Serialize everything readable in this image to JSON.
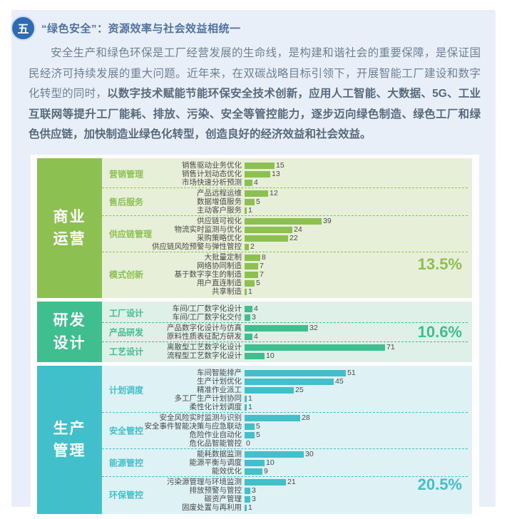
{
  "page": {
    "badge": "五",
    "title": "“绿色安全”：资源效率与社会效益相统一",
    "paragraph": {
      "normal": "安全生产和绿色环保是工厂经营发展的生命线，是构建和谐社会的重要保障，是保证国民经济可持续发展的重大问题。近年来，在双碳战略目标引领下，开展智能工厂建设和数字化转型的同时，",
      "bold": "以数字技术赋能节能环保安全技术创新，应用人工智能、大数据、5G、工业互联网等提升工厂能耗、排放、污染、安全等管控能力，逐步迈向绿色制造、绿色工厂和绿色供应链，加快制造业绿色化转型，创造良好的经济效益和社会效益。"
    }
  },
  "chart_data": {
    "type": "bar",
    "orientation": "horizontal",
    "value_max": 71,
    "legend_position": "none",
    "grid": false,
    "sections": [
      {
        "name": "商业运营",
        "label_lines": [
          "商业",
          "运营"
        ],
        "percent": "13.5%",
        "color": "#8cc152",
        "bg": "#e7efd9",
        "groups": [
          {
            "name": "营销管理",
            "items": [
              {
                "label": "销售驱动业务优化",
                "value": 15
              },
              {
                "label": "销售计划动态优化",
                "value": 13
              },
              {
                "label": "市场快速分析预测",
                "value": 4
              }
            ]
          },
          {
            "name": "售后服务",
            "items": [
              {
                "label": "产品远程运维",
                "value": 12
              },
              {
                "label": "数据增值服务",
                "value": 5
              },
              {
                "label": "主动客户服务",
                "value": 1
              }
            ]
          },
          {
            "name": "供应链管理",
            "items": [
              {
                "label": "供应链可视化",
                "value": 39
              },
              {
                "label": "物流实时监测与优化",
                "value": 24
              },
              {
                "label": "采购策略优化",
                "value": 22
              },
              {
                "label": "供应链风险预警与弹性管控",
                "value": 2
              }
            ]
          },
          {
            "name": "模式创新",
            "items": [
              {
                "label": "大批量定制",
                "value": 8
              },
              {
                "label": "网络协同制造",
                "value": 7
              },
              {
                "label": "基于数字孪生的制造",
                "value": 7
              },
              {
                "label": "用户直连制造",
                "value": 5
              },
              {
                "label": "共享制造",
                "value": 1
              }
            ]
          }
        ]
      },
      {
        "name": "研发设计",
        "label_lines": [
          "研发",
          "设计"
        ],
        "percent": "10.6%",
        "color": "#3fbe8f",
        "bg": "#dff0e9",
        "groups": [
          {
            "name": "工厂设计",
            "items": [
              {
                "label": "车间/工厂数字化设计",
                "value": 4
              },
              {
                "label": "车间/工厂数字化交付",
                "value": 3
              }
            ]
          },
          {
            "name": "产品研发",
            "items": [
              {
                "label": "产品数字化设计与仿真",
                "value": 32
              },
              {
                "label": "原料性质表征配方研发",
                "value": 4
              }
            ]
          },
          {
            "name": "工艺设计",
            "items": [
              {
                "label": "离散型工艺数字化设计",
                "value": 71
              },
              {
                "label": "流程型工艺数字化设计",
                "value": 10
              }
            ]
          }
        ]
      },
      {
        "name": "生产管理",
        "label_lines": [
          "生产",
          "管理"
        ],
        "percent": "20.5%",
        "color": "#41c0cb",
        "bg": "#def1f4",
        "groups": [
          {
            "name": "计划调度",
            "items": [
              {
                "label": "车间智能排产",
                "value": 51
              },
              {
                "label": "生产计划优化",
                "value": 45
              },
              {
                "label": "精准作业派工",
                "value": 25
              },
              {
                "label": "多工厂生产计划协同",
                "value": 1
              },
              {
                "label": "柔性化计划调度",
                "value": 1
              }
            ]
          },
          {
            "name": "安全管控",
            "items": [
              {
                "label": "安全风险实时监测与识别",
                "value": 28
              },
              {
                "label": "安全事件智能决策与应急联动",
                "value": 5
              },
              {
                "label": "危险作业自动化",
                "value": 5
              },
              {
                "label": "危化品智能管控",
                "value": 0
              }
            ]
          },
          {
            "name": "能源管控",
            "items": [
              {
                "label": "能耗数据监测",
                "value": 30
              },
              {
                "label": "能源平衡与调度",
                "value": 10
              },
              {
                "label": "能效优化",
                "value": 9
              }
            ]
          },
          {
            "name": "环保管控",
            "items": [
              {
                "label": "污染源管理与环境监测",
                "value": 21
              },
              {
                "label": "排放预警与管控",
                "value": 3
              },
              {
                "label": "碳资产管理",
                "value": 3
              },
              {
                "label": "固废处置与再利用",
                "value": 1
              }
            ]
          }
        ]
      }
    ]
  }
}
